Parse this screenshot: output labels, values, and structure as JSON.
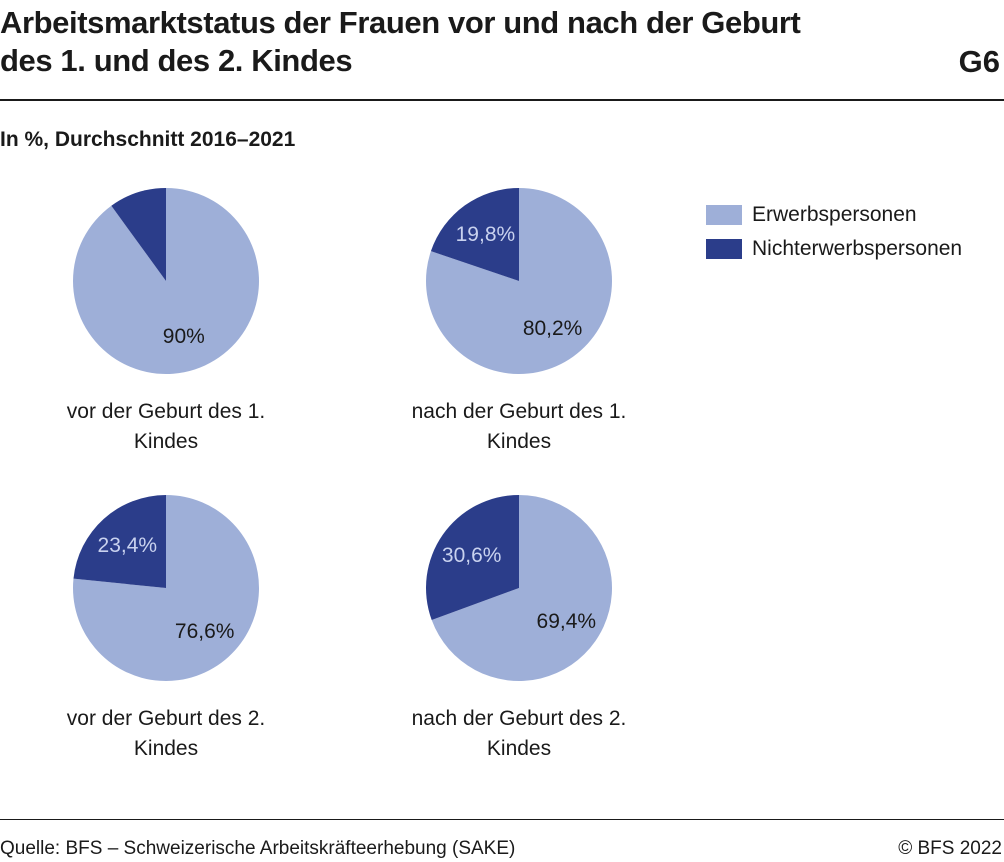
{
  "header": {
    "title_line1": "Arbeitsmarktstatus der Frauen vor und nach der Geburt",
    "title_line2": "des 1. und des 2. Kindes",
    "figure_id": "G6",
    "subtitle": "In %, Durchschnitt 2016–2021"
  },
  "footer": {
    "source": "Quelle: BFS – Schweizerische Arbeitskräfteerhebung (SAKE)",
    "copyright": "© BFS 2022"
  },
  "colors": {
    "erwerbspersonen": "#9eafd8",
    "nichterwerbspersonen": "#2b3d8a",
    "label_on_light": "#1a1a1a",
    "label_on_dark": "#c9d2ef"
  },
  "chart_data": {
    "type": "pie",
    "title": "Arbeitsmarktstatus der Frauen vor und nach der Geburt des 1. und des 2. Kindes",
    "subtitle": "In %, Durchschnitt 2016–2021",
    "legend_position": "top-right",
    "series_names": [
      "Erwerbspersonen",
      "Nichterwerbspersonen"
    ],
    "pies": [
      {
        "label_line1": "vor der Geburt des 1.",
        "label_line2": "Kindes",
        "values": [
          90,
          10
        ],
        "labels": [
          "90%",
          ""
        ]
      },
      {
        "label_line1": "nach der Geburt des 1.",
        "label_line2": "Kindes",
        "values": [
          80.2,
          19.8
        ],
        "labels": [
          "80,2%",
          "19,8%"
        ]
      },
      {
        "label_line1": "vor der Geburt des 2.",
        "label_line2": "Kindes",
        "values": [
          76.6,
          23.4
        ],
        "labels": [
          "76,6%",
          "23,4%"
        ]
      },
      {
        "label_line1": "nach der Geburt des 2.",
        "label_line2": "Kindes",
        "values": [
          69.4,
          30.6
        ],
        "labels": [
          "69,4%",
          "30,6%"
        ]
      }
    ]
  }
}
